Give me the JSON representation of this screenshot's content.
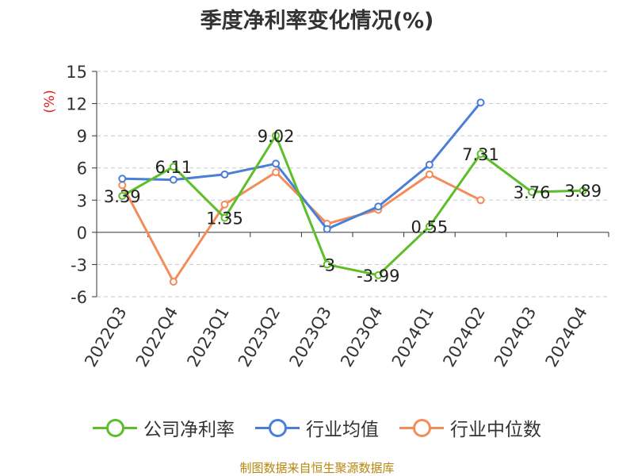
{
  "chart_data": {
    "type": "line",
    "title": "季度净利率变化情况(%)",
    "ylabel": "(%)",
    "ylim": [
      -6,
      15
    ],
    "yticks": [
      -6,
      -3,
      0,
      3,
      6,
      9,
      12,
      15
    ],
    "grid": true,
    "legend_position": "bottom",
    "categories": [
      "2022Q3",
      "2022Q4",
      "2023Q1",
      "2023Q2",
      "2023Q3",
      "2023Q4",
      "2024Q1",
      "2024Q2",
      "2024Q3",
      "2024Q4"
    ],
    "series": [
      {
        "name": "公司净利率",
        "color": "#5cbf2a",
        "values": [
          3.39,
          6.11,
          1.35,
          9.02,
          -3,
          -3.99,
          0.55,
          7.31,
          3.76,
          3.89
        ],
        "labels": [
          "3.39",
          "6.11",
          "1.35",
          "9.02",
          "-3",
          "-3.99",
          "0.55",
          "7.31",
          "3.76",
          "3.89"
        ]
      },
      {
        "name": "行业均值",
        "color": "#4a7fd8",
        "values": [
          5.0,
          4.9,
          5.4,
          6.4,
          0.3,
          2.4,
          6.3,
          12.1,
          null,
          null
        ]
      },
      {
        "name": "行业中位数",
        "color": "#f28c5a",
        "values": [
          4.4,
          -4.6,
          2.6,
          5.6,
          0.8,
          2.1,
          5.4,
          3.0,
          null,
          null
        ]
      }
    ]
  },
  "footer": {
    "source": "制图数据来自恒生聚源数据库"
  }
}
